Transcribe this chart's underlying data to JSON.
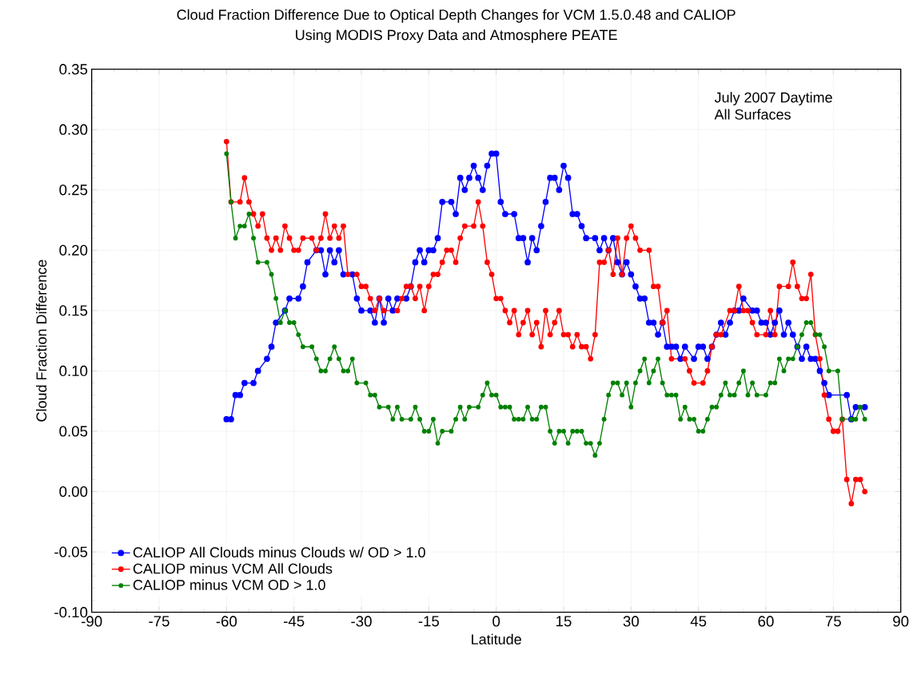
{
  "chart_data": {
    "type": "line",
    "title": "Cloud Fraction Difference Due to Optical Depth Changes for VCM 1.5.0.48 and CALIOP",
    "subtitle": "Using MODIS Proxy Data and Atmosphere PEATE",
    "xlabel": "Latitude",
    "ylabel": "Cloud Fraction Difference",
    "annotations": [
      "July 2007 Daytime",
      "All Surfaces"
    ],
    "xlim": [
      -90,
      90
    ],
    "ylim": [
      -0.1,
      0.35
    ],
    "xticks": [
      -90,
      -75,
      -60,
      -45,
      -30,
      -15,
      0,
      15,
      30,
      45,
      60,
      75,
      90
    ],
    "yticks": [
      {
        "value": -0.1,
        "label": "-0.10"
      },
      {
        "value": -0.05,
        "label": "-0.05"
      },
      {
        "value": 0,
        "label": "0.00"
      },
      {
        "value": 0.05,
        "label": "0.05"
      },
      {
        "value": 0.1,
        "label": "0.10"
      },
      {
        "value": 0.15,
        "label": "0.15"
      },
      {
        "value": 0.2,
        "label": "0.20"
      },
      {
        "value": 0.25,
        "label": "0.25"
      },
      {
        "value": 0.3,
        "label": "0.30"
      },
      {
        "value": 0.35,
        "label": "0.35"
      }
    ],
    "grid": true,
    "legend": "bottom left",
    "marker": "circle",
    "line_style": "solid",
    "series": [
      {
        "name": "CALIOP All Clouds minus Clouds w/ OD > 1.0",
        "color": "#0000ff",
        "x": [
          -60,
          -59,
          -58,
          -57,
          -56,
          -54,
          -53,
          -51,
          -50,
          -49,
          -47,
          -46,
          -44,
          -43,
          -42,
          -40,
          -39,
          -38,
          -37,
          -36,
          -35,
          -34,
          -32,
          -31,
          -30,
          -28,
          -27,
          -26,
          -25,
          -24,
          -23,
          -22,
          -20,
          -19,
          -18,
          -17,
          -16,
          -15,
          -14,
          -13,
          -12,
          -10,
          -9,
          -8,
          -7,
          -6,
          -5,
          -4,
          -3,
          -2,
          -1,
          0,
          1,
          2,
          4,
          5,
          6,
          7,
          8,
          9,
          10,
          11,
          12,
          13,
          14,
          15,
          16,
          17,
          18,
          19,
          20,
          22,
          23,
          24,
          25,
          26,
          27,
          28,
          29,
          30,
          31,
          32,
          33,
          34,
          35,
          36,
          37,
          38,
          39,
          40,
          41,
          42,
          44,
          45,
          46,
          47,
          48,
          49,
          50,
          51,
          52,
          53,
          54,
          55,
          57,
          58,
          59,
          60,
          61,
          62,
          63,
          64,
          65,
          66,
          67,
          68,
          69,
          70,
          71,
          72,
          73,
          74,
          78,
          79,
          80,
          82
        ],
        "values": [
          0.06,
          0.06,
          0.08,
          0.08,
          0.09,
          0.09,
          0.1,
          0.11,
          0.12,
          0.14,
          0.15,
          0.16,
          0.16,
          0.17,
          0.19,
          0.2,
          0.2,
          0.18,
          0.2,
          0.19,
          0.2,
          0.18,
          0.18,
          0.16,
          0.15,
          0.15,
          0.14,
          0.16,
          0.14,
          0.16,
          0.15,
          0.16,
          0.16,
          0.17,
          0.19,
          0.2,
          0.19,
          0.2,
          0.2,
          0.21,
          0.24,
          0.24,
          0.23,
          0.26,
          0.25,
          0.26,
          0.27,
          0.26,
          0.25,
          0.27,
          0.28,
          0.28,
          0.24,
          0.23,
          0.23,
          0.21,
          0.21,
          0.19,
          0.21,
          0.2,
          0.22,
          0.24,
          0.26,
          0.26,
          0.25,
          0.27,
          0.26,
          0.23,
          0.23,
          0.22,
          0.21,
          0.21,
          0.2,
          0.21,
          0.2,
          0.21,
          0.19,
          0.18,
          0.19,
          0.18,
          0.17,
          0.16,
          0.16,
          0.14,
          0.14,
          0.13,
          0.14,
          0.12,
          0.12,
          0.12,
          0.11,
          0.12,
          0.11,
          0.12,
          0.12,
          0.11,
          0.12,
          0.13,
          0.14,
          0.13,
          0.14,
          0.15,
          0.15,
          0.16,
          0.15,
          0.15,
          0.14,
          0.14,
          0.13,
          0.14,
          0.15,
          0.13,
          0.14,
          0.13,
          0.12,
          0.11,
          0.12,
          0.11,
          0.11,
          0.1,
          0.09,
          0.08,
          0.08,
          0.06,
          0.07,
          0.07
        ]
      },
      {
        "name": "CALIOP minus VCM All Clouds",
        "color": "#ff0000",
        "x": [
          -60,
          -59,
          -57,
          -56,
          -55,
          -54,
          -53,
          -52,
          -51,
          -50,
          -49,
          -48,
          -47,
          -46,
          -45,
          -44,
          -43,
          -41,
          -40,
          -39,
          -38,
          -37,
          -36,
          -35,
          -34,
          -33,
          -31,
          -30,
          -29,
          -28,
          -27,
          -26,
          -25,
          -22,
          -21,
          -20,
          -19,
          -18,
          -17,
          -16,
          -15,
          -14,
          -13,
          -12,
          -11,
          -10,
          -9,
          -8,
          -7,
          -5,
          -4,
          -3,
          -2,
          -1,
          0,
          1,
          2,
          3,
          4,
          5,
          6,
          7,
          8,
          9,
          10,
          11,
          12,
          13,
          14,
          15,
          16,
          17,
          18,
          19,
          20,
          21,
          22,
          23,
          24,
          25,
          26,
          27,
          28,
          29,
          30,
          31,
          32,
          34,
          35,
          36,
          37,
          38,
          39,
          42,
          43,
          44,
          46,
          47,
          48,
          49,
          50,
          52,
          53,
          54,
          55,
          56,
          57,
          58,
          60,
          61,
          62,
          63,
          65,
          66,
          67,
          68,
          69,
          70,
          71,
          72,
          73,
          74,
          75,
          76,
          77,
          78,
          79,
          80,
          81,
          82
        ],
        "values": [
          0.29,
          0.24,
          0.24,
          0.26,
          0.24,
          0.23,
          0.22,
          0.23,
          0.21,
          0.2,
          0.21,
          0.2,
          0.22,
          0.21,
          0.2,
          0.2,
          0.21,
          0.21,
          0.2,
          0.21,
          0.23,
          0.21,
          0.22,
          0.21,
          0.22,
          0.18,
          0.18,
          0.17,
          0.17,
          0.16,
          0.15,
          0.16,
          0.15,
          0.15,
          0.16,
          0.17,
          0.17,
          0.16,
          0.17,
          0.15,
          0.17,
          0.18,
          0.18,
          0.19,
          0.2,
          0.2,
          0.19,
          0.21,
          0.22,
          0.22,
          0.24,
          0.22,
          0.19,
          0.18,
          0.16,
          0.16,
          0.15,
          0.14,
          0.15,
          0.13,
          0.14,
          0.15,
          0.13,
          0.14,
          0.12,
          0.15,
          0.13,
          0.14,
          0.15,
          0.13,
          0.13,
          0.12,
          0.13,
          0.12,
          0.12,
          0.11,
          0.13,
          0.19,
          0.19,
          0.2,
          0.18,
          0.21,
          0.18,
          0.21,
          0.22,
          0.21,
          0.2,
          0.2,
          0.17,
          0.17,
          0.14,
          0.15,
          0.11,
          0.11,
          0.1,
          0.09,
          0.09,
          0.1,
          0.12,
          0.13,
          0.13,
          0.15,
          0.15,
          0.17,
          0.15,
          0.15,
          0.14,
          0.13,
          0.13,
          0.15,
          0.13,
          0.17,
          0.17,
          0.19,
          0.17,
          0.16,
          0.16,
          0.18,
          0.13,
          0.11,
          0.08,
          0.06,
          0.05,
          0.05,
          0.06,
          0.01,
          -0.01,
          0.01,
          0.01,
          0.0
        ]
      },
      {
        "name": "CALIOP minus VCM OD > 1.0",
        "color": "#008000",
        "x": [
          -60,
          -59,
          -58,
          -57,
          -56,
          -55,
          -54,
          -53,
          -51,
          -50,
          -49,
          -48,
          -47,
          -46,
          -45,
          -44,
          -43,
          -41,
          -40,
          -39,
          -38,
          -37,
          -36,
          -35,
          -34,
          -33,
          -32,
          -31,
          -29,
          -28,
          -27,
          -26,
          -24,
          -23,
          -22,
          -21,
          -19,
          -18,
          -17,
          -16,
          -15,
          -14,
          -13,
          -12,
          -10,
          -9,
          -8,
          -7,
          -6,
          -4,
          -3,
          -2,
          -1,
          0,
          1,
          2,
          3,
          4,
          5,
          6,
          7,
          8,
          9,
          10,
          11,
          12,
          13,
          14,
          15,
          16,
          17,
          18,
          19,
          20,
          21,
          22,
          23,
          24,
          25,
          26,
          27,
          28,
          29,
          30,
          31,
          32,
          33,
          34,
          35,
          36,
          37,
          38,
          39,
          40,
          41,
          42,
          43,
          44,
          45,
          46,
          47,
          48,
          49,
          50,
          51,
          52,
          53,
          54,
          55,
          56,
          57,
          58,
          60,
          61,
          62,
          63,
          64,
          65,
          66,
          67,
          68,
          69,
          70,
          71,
          72,
          73,
          74,
          76,
          77,
          79,
          80,
          81,
          82
        ],
        "values": [
          0.28,
          0.24,
          0.21,
          0.22,
          0.22,
          0.23,
          0.21,
          0.19,
          0.19,
          0.18,
          0.16,
          0.14,
          0.15,
          0.14,
          0.14,
          0.13,
          0.12,
          0.12,
          0.11,
          0.1,
          0.1,
          0.11,
          0.12,
          0.11,
          0.1,
          0.1,
          0.11,
          0.09,
          0.09,
          0.08,
          0.08,
          0.07,
          0.07,
          0.06,
          0.07,
          0.06,
          0.06,
          0.07,
          0.06,
          0.05,
          0.05,
          0.06,
          0.04,
          0.05,
          0.05,
          0.06,
          0.07,
          0.06,
          0.07,
          0.07,
          0.08,
          0.09,
          0.08,
          0.08,
          0.07,
          0.07,
          0.07,
          0.06,
          0.06,
          0.06,
          0.07,
          0.06,
          0.06,
          0.07,
          0.07,
          0.05,
          0.04,
          0.05,
          0.05,
          0.04,
          0.05,
          0.05,
          0.05,
          0.04,
          0.04,
          0.03,
          0.04,
          0.06,
          0.08,
          0.09,
          0.09,
          0.08,
          0.09,
          0.07,
          0.09,
          0.1,
          0.11,
          0.09,
          0.1,
          0.11,
          0.09,
          0.08,
          0.08,
          0.08,
          0.06,
          0.07,
          0.06,
          0.06,
          0.05,
          0.05,
          0.06,
          0.07,
          0.07,
          0.08,
          0.09,
          0.08,
          0.08,
          0.09,
          0.1,
          0.08,
          0.09,
          0.08,
          0.08,
          0.09,
          0.09,
          0.11,
          0.1,
          0.11,
          0.11,
          0.12,
          0.13,
          0.14,
          0.14,
          0.13,
          0.13,
          0.12,
          0.1,
          0.1,
          0.06,
          0.06,
          0.06,
          0.07,
          0.06
        ]
      }
    ]
  }
}
